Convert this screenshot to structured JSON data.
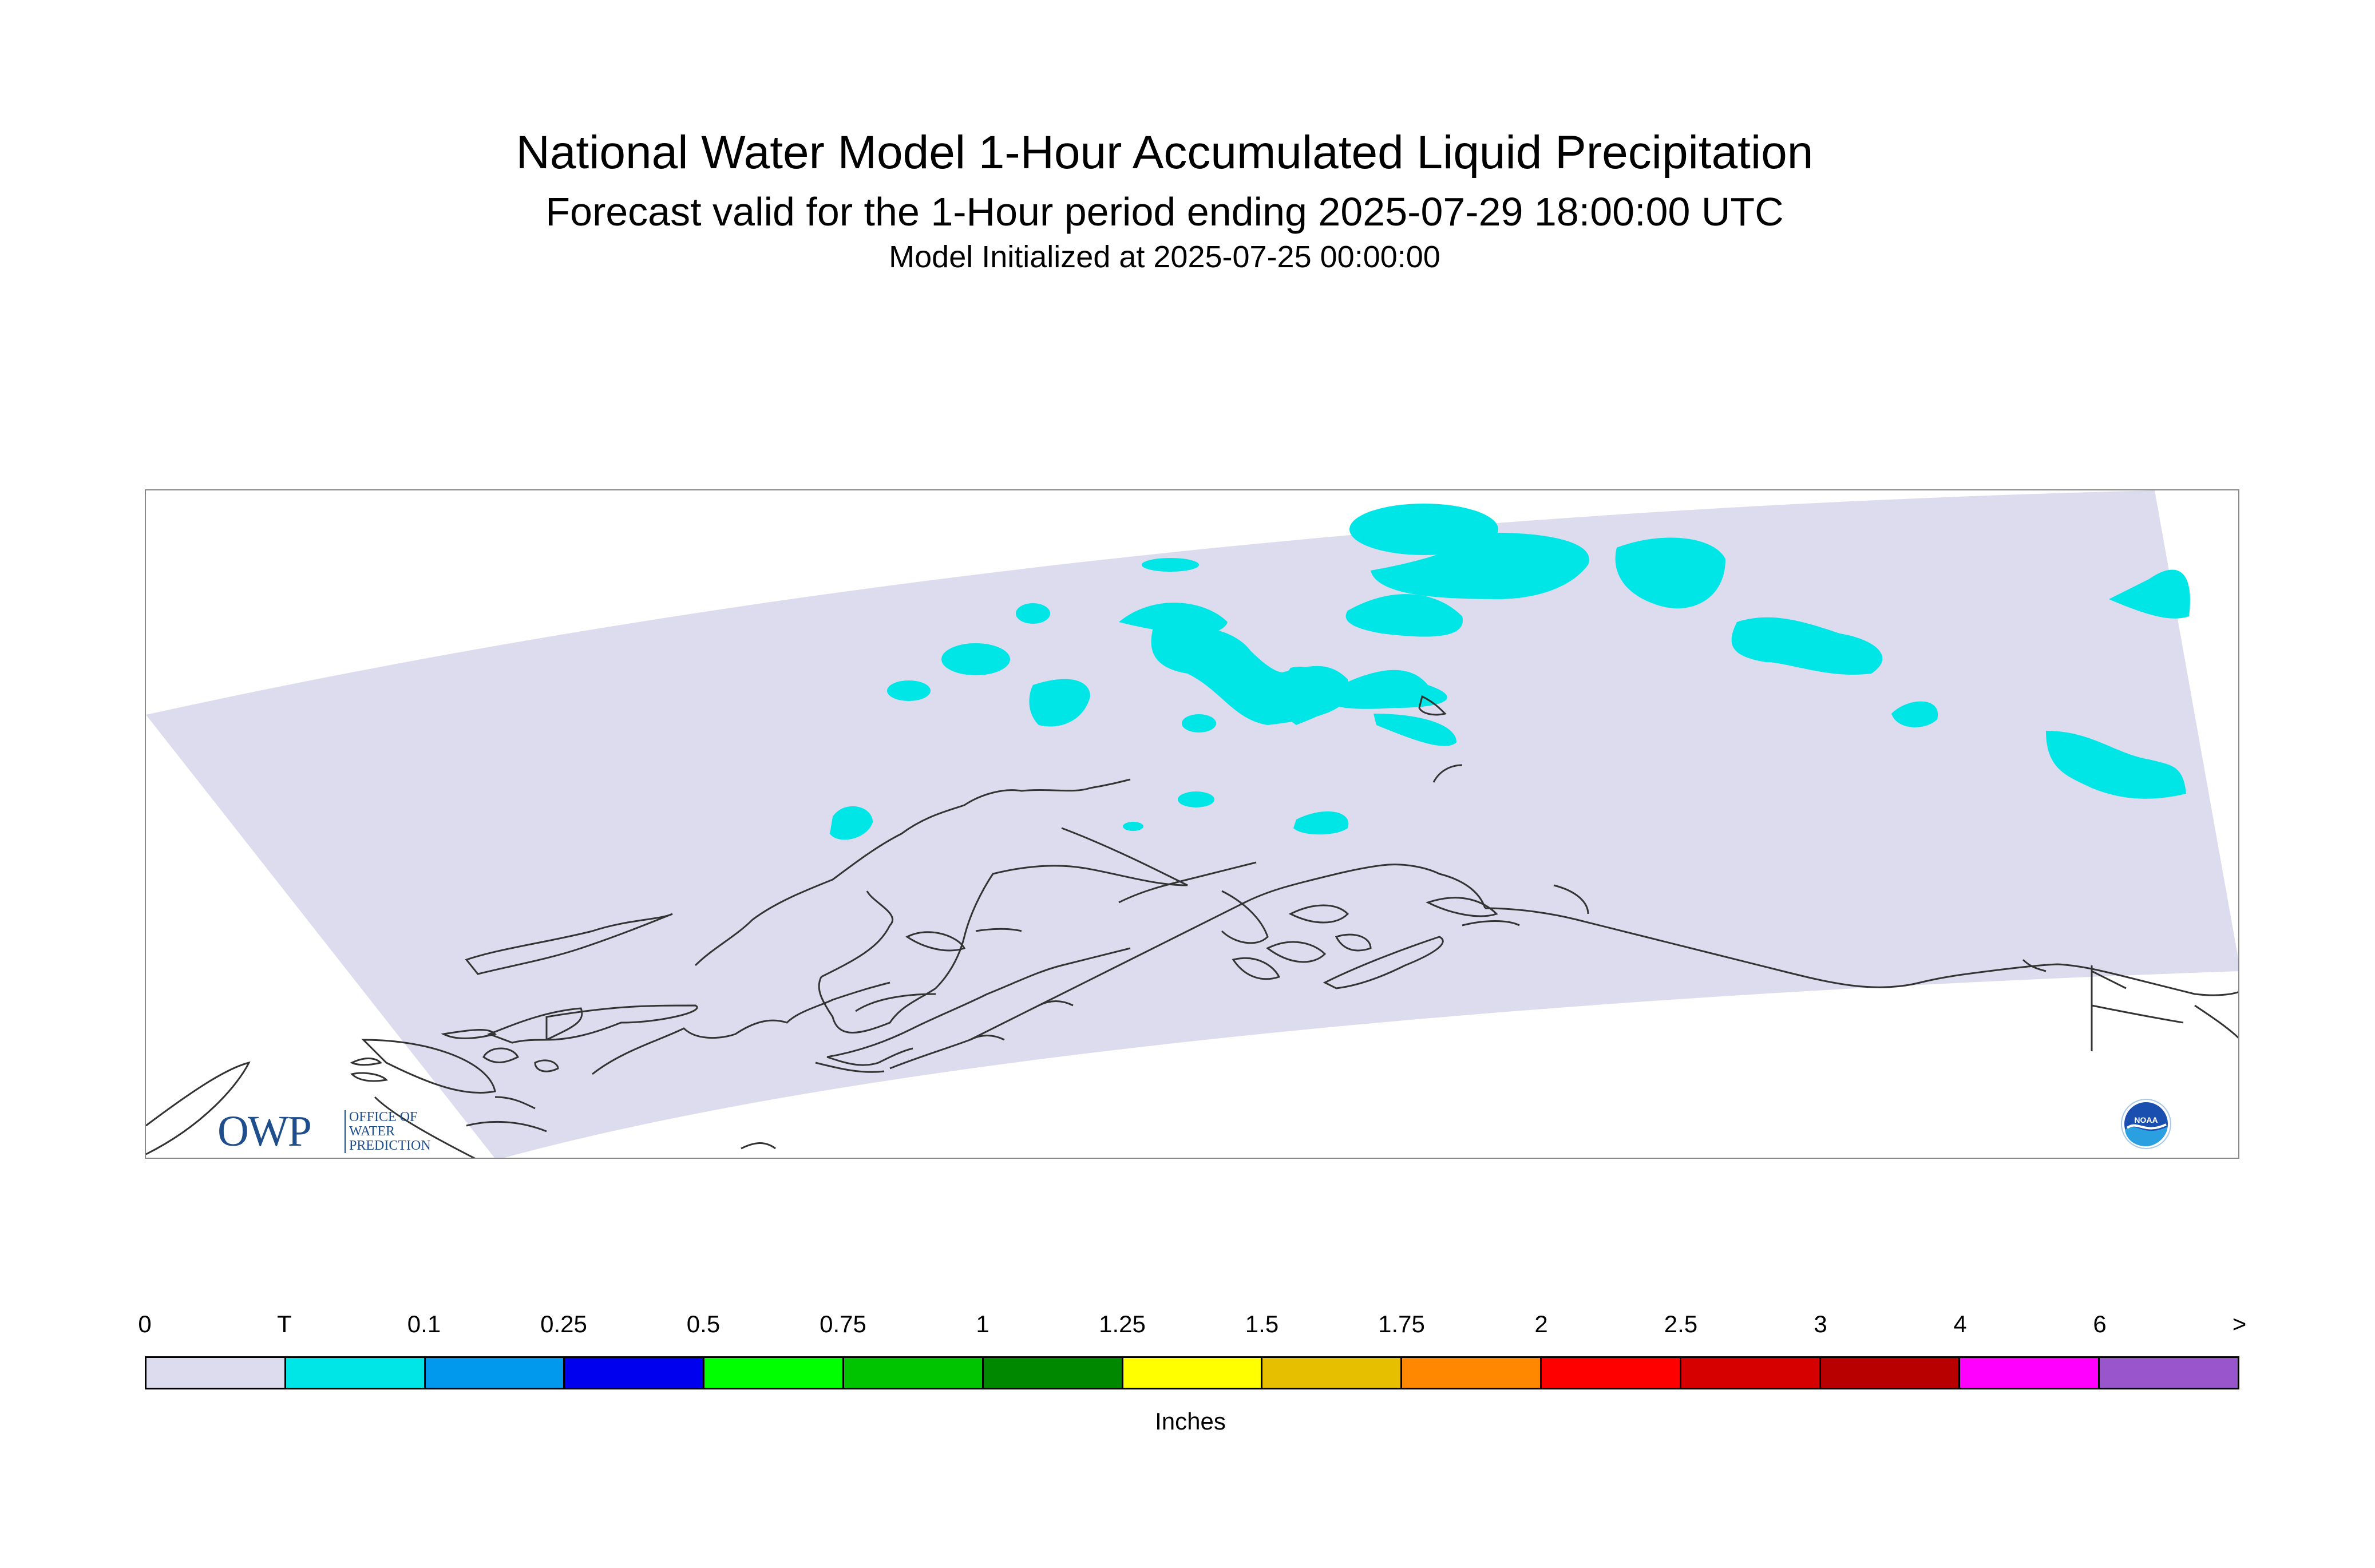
{
  "header": {
    "title": "National Water Model 1-Hour Accumulated Liquid Precipitation",
    "subtitle": "Forecast valid for the 1-Hour period ending 2025-07-29 18:00:00 UTC",
    "init": "Model Initialized at 2025-07-25 00:00:00"
  },
  "map": {
    "domain_color": "#dcdcee",
    "trace_color": "#00e5e5",
    "coastline_color": "#333333"
  },
  "logos": {
    "owp": {
      "letters": "OWP",
      "text": "OFFICE OF\nWATER\nPREDICTION"
    },
    "noaa": {
      "text": "NOAA"
    }
  },
  "legend": {
    "ticks": [
      "0",
      "T",
      "0.1",
      "0.25",
      "0.5",
      "0.75",
      "1",
      "1.25",
      "1.5",
      "1.75",
      "2",
      "2.5",
      "3",
      "4",
      "6",
      ">"
    ],
    "colors": [
      "#dcdcee",
      "#00e5e5",
      "#0099ee",
      "#0000ee",
      "#00ff00",
      "#00c400",
      "#008800",
      "#ffff00",
      "#e6c000",
      "#ff8800",
      "#ff0000",
      "#d60000",
      "#b80000",
      "#ff00ff",
      "#9955cc"
    ],
    "units": "Inches"
  }
}
